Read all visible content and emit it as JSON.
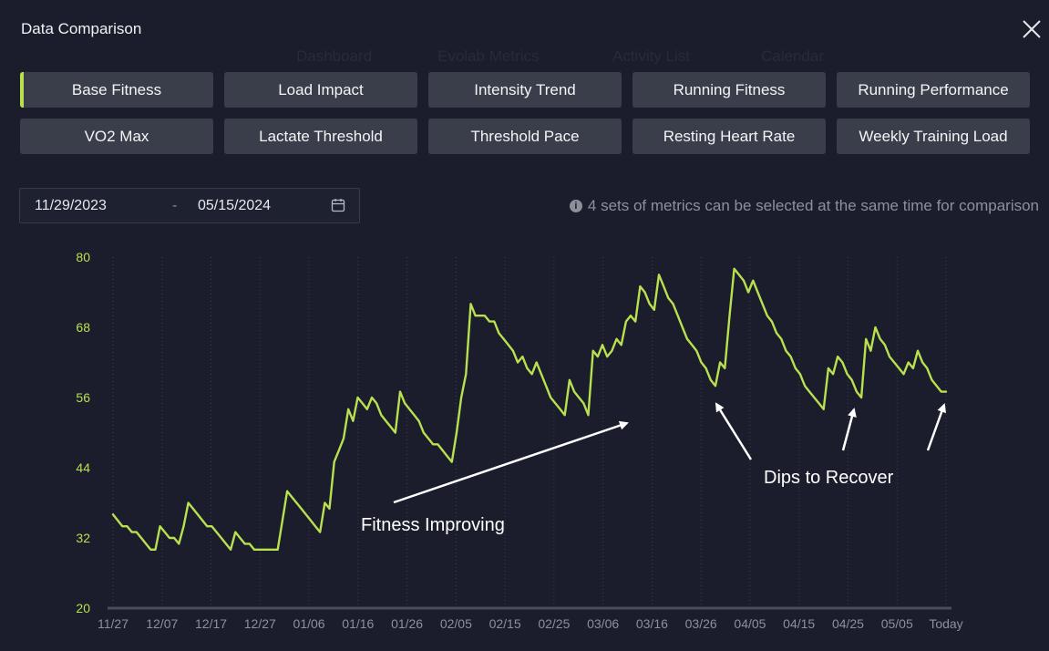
{
  "modal": {
    "title": "Data Comparison",
    "close_icon": "close-icon"
  },
  "tabs": [
    {
      "label": "Base Fitness",
      "active": true
    },
    {
      "label": "Load Impact",
      "active": false
    },
    {
      "label": "Intensity Trend",
      "active": false
    },
    {
      "label": "Running Fitness",
      "active": false
    },
    {
      "label": "Running Performance",
      "active": false
    },
    {
      "label": "VO2 Max",
      "active": false
    },
    {
      "label": "Lactate Threshold",
      "active": false
    },
    {
      "label": "Threshold Pace",
      "active": false
    },
    {
      "label": "Resting Heart Rate",
      "active": false
    },
    {
      "label": "Weekly Training Load",
      "active": false
    }
  ],
  "date_range": {
    "start": "11/29/2023",
    "separator": "-",
    "end": "05/15/2024",
    "icon": "calendar-icon"
  },
  "hint": {
    "icon": "info-icon",
    "text": "4 sets of metrics can be selected at the same time for comparison"
  },
  "colors": {
    "accent": "#b9e04f",
    "background": "#1b1d2c",
    "tab_bg": "#3a3e4b",
    "axis_text": "#8d909b"
  },
  "chart_data": {
    "type": "line",
    "title": "",
    "xlabel": "",
    "ylabel": "",
    "ylim": [
      20,
      80
    ],
    "yticks": [
      20,
      32,
      44,
      56,
      68,
      80
    ],
    "x_tick_labels": [
      "11/27",
      "12/07",
      "12/17",
      "12/27",
      "01/06",
      "01/16",
      "01/26",
      "02/05",
      "02/15",
      "02/25",
      "03/06",
      "03/16",
      "03/26",
      "04/05",
      "04/15",
      "04/25",
      "05/05",
      "Today"
    ],
    "grid": "vertical dotted",
    "series": [
      {
        "color": "#b9e04f",
        "values": [
          36,
          35,
          34,
          34,
          33,
          33,
          32,
          31,
          30,
          30,
          34,
          33,
          32,
          32,
          31,
          34,
          38,
          37,
          36,
          35,
          34,
          34,
          33,
          32,
          31,
          30,
          33,
          32,
          31,
          31,
          30,
          30,
          30,
          30,
          30,
          30,
          35,
          40,
          39,
          38,
          37,
          36,
          35,
          34,
          33,
          38,
          37,
          45,
          47,
          49,
          54,
          52,
          56,
          55,
          54,
          56,
          55,
          53,
          52,
          51,
          50,
          57,
          55,
          54,
          53,
          52,
          50,
          49,
          48,
          48,
          47,
          46,
          45,
          50,
          56,
          60,
          72,
          70,
          70,
          70,
          69,
          69,
          67,
          66,
          65,
          64,
          62,
          63,
          61,
          60,
          62,
          60,
          58,
          56,
          55,
          54,
          53,
          59,
          57,
          56,
          55,
          53,
          64,
          63,
          65,
          63,
          64,
          66,
          65,
          69,
          70,
          69,
          75,
          74,
          72,
          71,
          77,
          75,
          73,
          72,
          70,
          68,
          66,
          65,
          64,
          62,
          61,
          59,
          58,
          62,
          61,
          70,
          78,
          77,
          76,
          74,
          76,
          74,
          72,
          70,
          69,
          67,
          66,
          64,
          63,
          61,
          60,
          58,
          57,
          56,
          55,
          54,
          61,
          60,
          63,
          62,
          60,
          59,
          57,
          56,
          66,
          64,
          68,
          66,
          65,
          63,
          62,
          61,
          60,
          62,
          61,
          64,
          62,
          61,
          59,
          58,
          57,
          57
        ]
      }
    ],
    "annotations": [
      {
        "text": "Fitness Improving"
      },
      {
        "text": "Dips to Recover"
      }
    ]
  }
}
